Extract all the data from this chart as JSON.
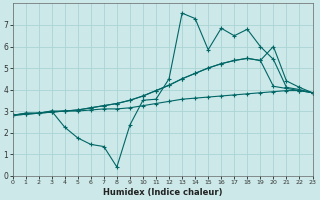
{
  "xlabel": "Humidex (Indice chaleur)",
  "bg_color": "#cce8e8",
  "grid_color": "#aad4d4",
  "line_color": "#006666",
  "xlim": [
    0,
    23
  ],
  "ylim": [
    0,
    8
  ],
  "xticks": [
    0,
    1,
    2,
    3,
    4,
    5,
    6,
    7,
    8,
    9,
    10,
    11,
    12,
    13,
    14,
    15,
    16,
    17,
    18,
    19,
    20,
    21,
    22,
    23
  ],
  "yticks": [
    0,
    1,
    2,
    3,
    4,
    5,
    6,
    7
  ],
  "lines": [
    [
      2.8,
      2.9,
      2.9,
      3.0,
      3.0,
      3.0,
      3.05,
      3.1,
      3.1,
      3.15,
      3.25,
      3.35,
      3.45,
      3.55,
      3.6,
      3.65,
      3.7,
      3.75,
      3.8,
      3.85,
      3.9,
      3.95,
      3.95,
      3.85
    ],
    [
      2.8,
      2.85,
      2.9,
      2.95,
      3.0,
      3.05,
      3.15,
      3.25,
      3.35,
      3.5,
      3.7,
      3.95,
      4.2,
      4.5,
      4.75,
      5.0,
      5.2,
      5.35,
      5.45,
      5.35,
      6.0,
      4.4,
      4.1,
      3.85
    ],
    [
      2.8,
      2.85,
      2.9,
      2.95,
      3.0,
      3.05,
      3.15,
      3.25,
      3.35,
      3.5,
      3.7,
      3.95,
      4.2,
      4.5,
      4.75,
      5.0,
      5.2,
      5.35,
      5.45,
      5.35,
      4.15,
      4.05,
      3.95,
      3.85
    ],
    [
      2.8,
      2.9,
      2.9,
      3.0,
      2.25,
      1.75,
      1.45,
      1.35,
      0.4,
      2.35,
      3.5,
      3.55,
      4.5,
      7.55,
      7.3,
      5.85,
      6.85,
      6.5,
      6.8,
      6.0,
      5.4,
      4.1,
      4.0,
      3.85
    ]
  ]
}
